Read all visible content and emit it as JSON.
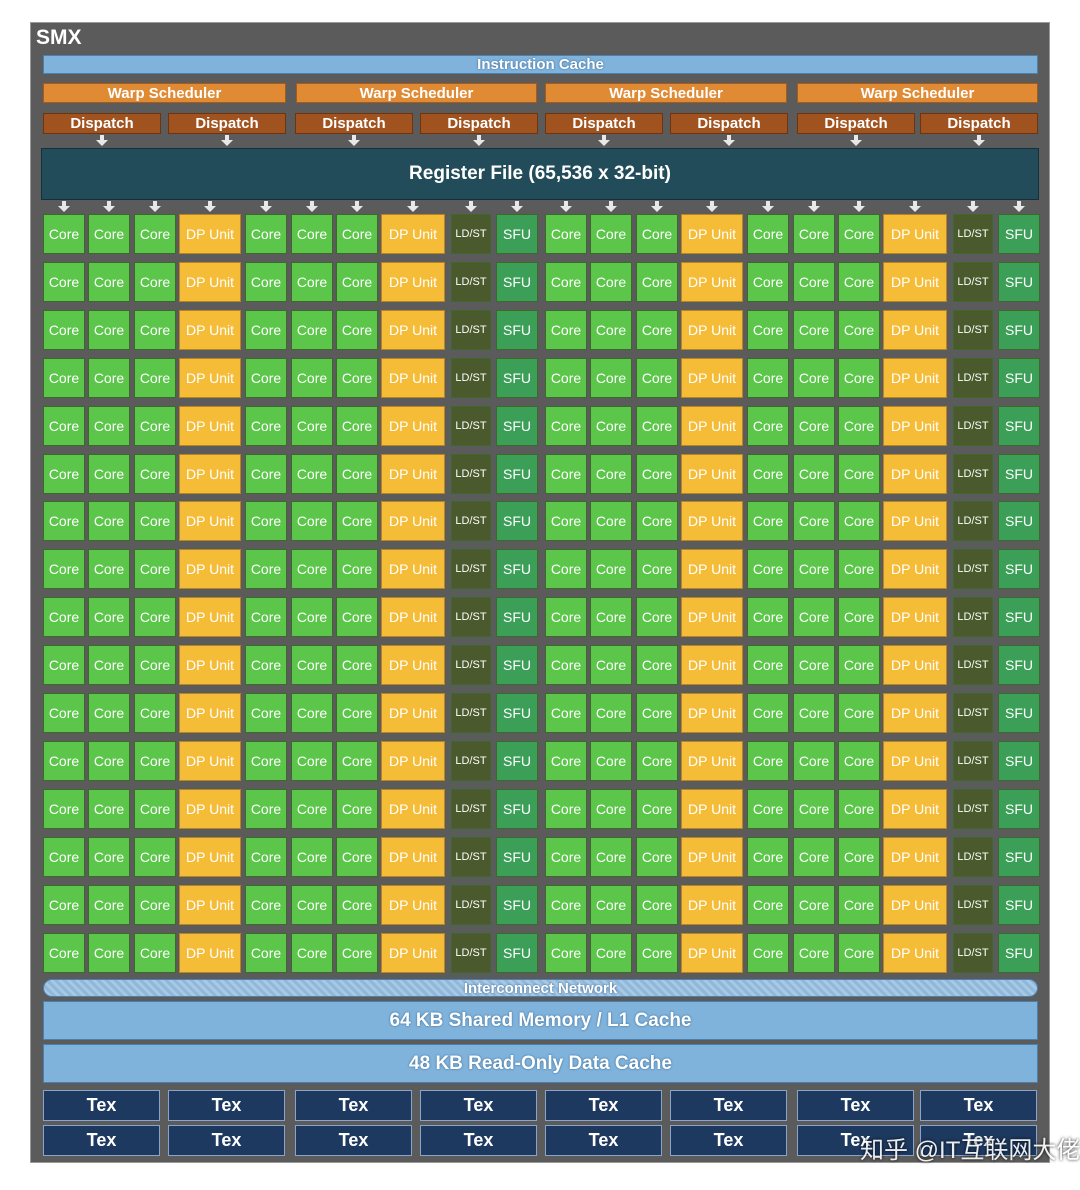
{
  "title": "SMX",
  "instruction_cache": "Instruction Cache",
  "warp_schedulers": [
    "Warp Scheduler",
    "Warp Scheduler",
    "Warp Scheduler",
    "Warp Scheduler"
  ],
  "dispatch_units": [
    "Dispatch",
    "Dispatch",
    "Dispatch",
    "Dispatch",
    "Dispatch",
    "Dispatch",
    "Dispatch",
    "Dispatch"
  ],
  "register_file": "Register File (65,536 x 32-bit)",
  "unit_rows": [
    [
      "Core",
      "Core",
      "Core",
      "DP Unit",
      "Core",
      "Core",
      "Core",
      "DP Unit",
      "LD/ST",
      "SFU",
      "Core",
      "Core",
      "Core",
      "DP Unit",
      "Core",
      "Core",
      "Core",
      "DP Unit",
      "LD/ST",
      "SFU"
    ],
    [
      "Core",
      "Core",
      "Core",
      "DP Unit",
      "Core",
      "Core",
      "Core",
      "DP Unit",
      "LD/ST",
      "SFU",
      "Core",
      "Core",
      "Core",
      "DP Unit",
      "Core",
      "Core",
      "Core",
      "DP Unit",
      "LD/ST",
      "SFU"
    ],
    [
      "Core",
      "Core",
      "Core",
      "DP Unit",
      "Core",
      "Core",
      "Core",
      "DP Unit",
      "LD/ST",
      "SFU",
      "Core",
      "Core",
      "Core",
      "DP Unit",
      "Core",
      "Core",
      "Core",
      "DP Unit",
      "LD/ST",
      "SFU"
    ],
    [
      "Core",
      "Core",
      "Core",
      "DP Unit",
      "Core",
      "Core",
      "Core",
      "DP Unit",
      "LD/ST",
      "SFU",
      "Core",
      "Core",
      "Core",
      "DP Unit",
      "Core",
      "Core",
      "Core",
      "DP Unit",
      "LD/ST",
      "SFU"
    ],
    [
      "Core",
      "Core",
      "Core",
      "DP Unit",
      "Core",
      "Core",
      "Core",
      "DP Unit",
      "LD/ST",
      "SFU",
      "Core",
      "Core",
      "Core",
      "DP Unit",
      "Core",
      "Core",
      "Core",
      "DP Unit",
      "LD/ST",
      "SFU"
    ],
    [
      "Core",
      "Core",
      "Core",
      "DP Unit",
      "Core",
      "Core",
      "Core",
      "DP Unit",
      "LD/ST",
      "SFU",
      "Core",
      "Core",
      "Core",
      "DP Unit",
      "Core",
      "Core",
      "Core",
      "DP Unit",
      "LD/ST",
      "SFU"
    ],
    [
      "Core",
      "Core",
      "Core",
      "DP Unit",
      "Core",
      "Core",
      "Core",
      "DP Unit",
      "LD/ST",
      "SFU",
      "Core",
      "Core",
      "Core",
      "DP Unit",
      "Core",
      "Core",
      "Core",
      "DP Unit",
      "LD/ST",
      "SFU"
    ],
    [
      "Core",
      "Core",
      "Core",
      "DP Unit",
      "Core",
      "Core",
      "Core",
      "DP Unit",
      "LD/ST",
      "SFU",
      "Core",
      "Core",
      "Core",
      "DP Unit",
      "Core",
      "Core",
      "Core",
      "DP Unit",
      "LD/ST",
      "SFU"
    ],
    [
      "Core",
      "Core",
      "Core",
      "DP Unit",
      "Core",
      "Core",
      "Core",
      "DP Unit",
      "LD/ST",
      "SFU",
      "Core",
      "Core",
      "Core",
      "DP Unit",
      "Core",
      "Core",
      "Core",
      "DP Unit",
      "LD/ST",
      "SFU"
    ],
    [
      "Core",
      "Core",
      "Core",
      "DP Unit",
      "Core",
      "Core",
      "Core",
      "DP Unit",
      "LD/ST",
      "SFU",
      "Core",
      "Core",
      "Core",
      "DP Unit",
      "Core",
      "Core",
      "Core",
      "DP Unit",
      "LD/ST",
      "SFU"
    ],
    [
      "Core",
      "Core",
      "Core",
      "DP Unit",
      "Core",
      "Core",
      "Core",
      "DP Unit",
      "LD/ST",
      "SFU",
      "Core",
      "Core",
      "Core",
      "DP Unit",
      "Core",
      "Core",
      "Core",
      "DP Unit",
      "LD/ST",
      "SFU"
    ],
    [
      "Core",
      "Core",
      "Core",
      "DP Unit",
      "Core",
      "Core",
      "Core",
      "DP Unit",
      "LD/ST",
      "SFU",
      "Core",
      "Core",
      "Core",
      "DP Unit",
      "Core",
      "Core",
      "Core",
      "DP Unit",
      "LD/ST",
      "SFU"
    ],
    [
      "Core",
      "Core",
      "Core",
      "DP Unit",
      "Core",
      "Core",
      "Core",
      "DP Unit",
      "LD/ST",
      "SFU",
      "Core",
      "Core",
      "Core",
      "DP Unit",
      "Core",
      "Core",
      "Core",
      "DP Unit",
      "LD/ST",
      "SFU"
    ],
    [
      "Core",
      "Core",
      "Core",
      "DP Unit",
      "Core",
      "Core",
      "Core",
      "DP Unit",
      "LD/ST",
      "SFU",
      "Core",
      "Core",
      "Core",
      "DP Unit",
      "Core",
      "Core",
      "Core",
      "DP Unit",
      "LD/ST",
      "SFU"
    ],
    [
      "Core",
      "Core",
      "Core",
      "DP Unit",
      "Core",
      "Core",
      "Core",
      "DP Unit",
      "LD/ST",
      "SFU",
      "Core",
      "Core",
      "Core",
      "DP Unit",
      "Core",
      "Core",
      "Core",
      "DP Unit",
      "LD/ST",
      "SFU"
    ],
    [
      "Core",
      "Core",
      "Core",
      "DP Unit",
      "Core",
      "Core",
      "Core",
      "DP Unit",
      "LD/ST",
      "SFU",
      "Core",
      "Core",
      "Core",
      "DP Unit",
      "Core",
      "Core",
      "Core",
      "DP Unit",
      "LD/ST",
      "SFU"
    ]
  ],
  "interconnect": "Interconnect Network",
  "shared_memory": "64 KB Shared Memory / L1 Cache",
  "read_only_cache": "48 KB Read-Only Data Cache",
  "tex_units": [
    [
      "Tex",
      "Tex",
      "Tex",
      "Tex",
      "Tex",
      "Tex",
      "Tex",
      "Tex"
    ],
    [
      "Tex",
      "Tex",
      "Tex",
      "Tex",
      "Tex",
      "Tex",
      "Tex",
      "Tex"
    ]
  ],
  "watermark": "知乎 @IT互联网大佬"
}
